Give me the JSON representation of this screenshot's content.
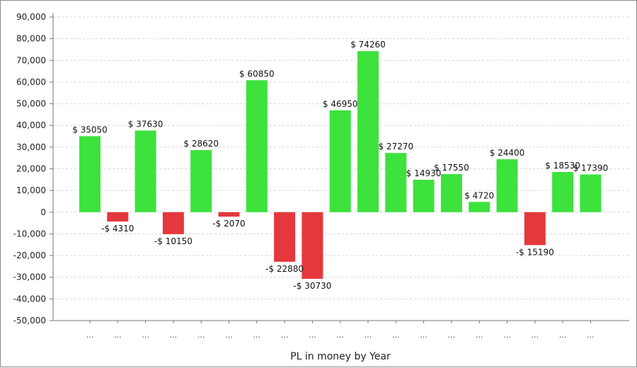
{
  "chart_data": {
    "type": "bar",
    "title": "",
    "xlabel": "PL in money by Year",
    "ylabel": "",
    "ylim": [
      -50000,
      90000
    ],
    "ytick_step": 10000,
    "grid": true,
    "categories": [
      "...",
      "...",
      "...",
      "...",
      "...",
      "...",
      "...",
      "...",
      "...",
      "...",
      "...",
      "...",
      "...",
      "...",
      "...",
      "...",
      "...",
      "...",
      "..."
    ],
    "values": [
      35050,
      -4310,
      37630,
      -10150,
      28620,
      -2070,
      60850,
      -22880,
      -30730,
      46950,
      74260,
      27270,
      14930,
      17550,
      4720,
      24400,
      -15190,
      18530,
      17390
    ],
    "data_labels": [
      "$ 35050",
      "-$ 4310",
      "$ 37630",
      "-$ 10150",
      "$ 28620",
      "-$ 2070",
      "$ 60850",
      "-$ 22880",
      "-$ 30730",
      "$ 46950",
      "$ 74260",
      "$ 27270",
      "$ 14930",
      "$ 17550",
      "$ 4720",
      "$ 24400",
      "-$ 15190",
      "$ 18530",
      "$ 17390"
    ],
    "positive_color": "#3de23d",
    "negative_color": "#e5383d"
  }
}
